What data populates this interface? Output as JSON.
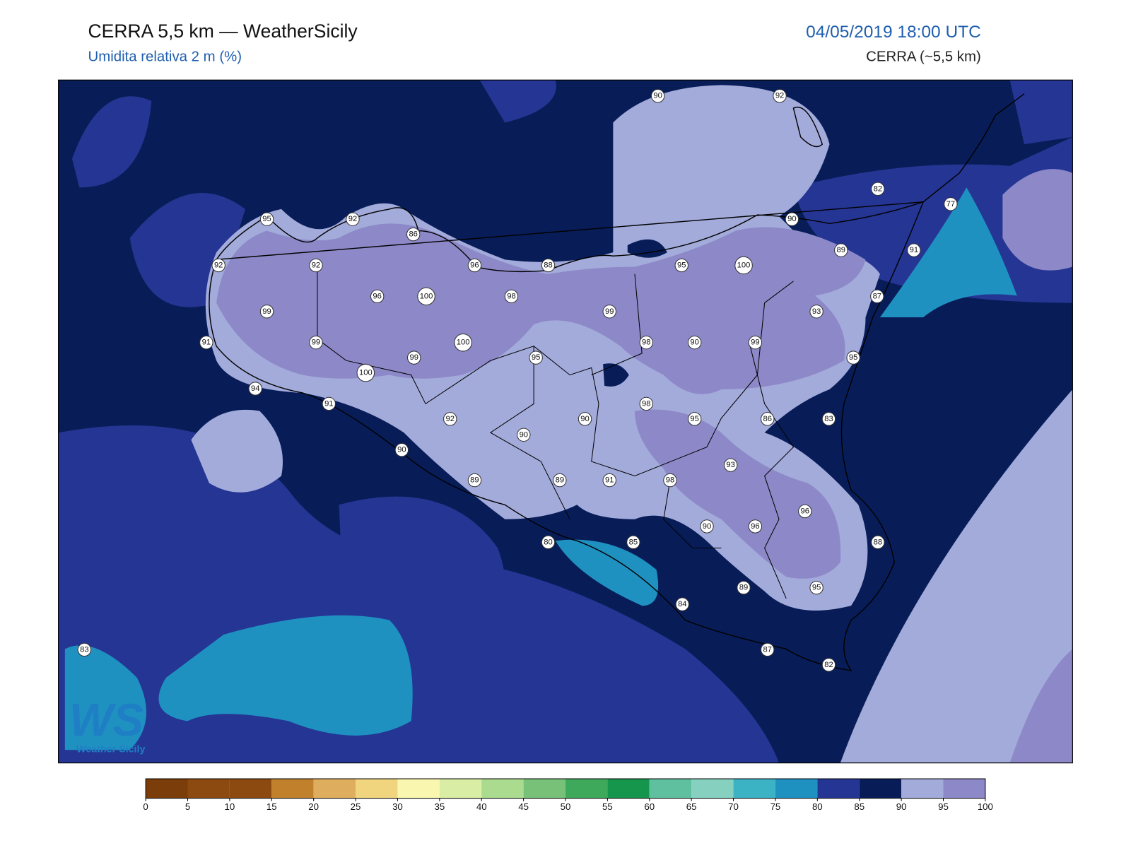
{
  "header": {
    "title": "CERRA 5,5 km — WeatherSicily",
    "subtitle": "Umidita relativa 2 m (%)",
    "datetime": "04/05/2019 18:00 UTC",
    "model": "CERRA (~5,5 km)"
  },
  "logo": {
    "mark": "WS",
    "text": "Weather Sicily"
  },
  "stations": [
    95,
    92,
    86,
    92,
    92,
    96,
    88,
    96,
    100,
    98,
    99,
    91,
    99,
    100,
    99,
    100,
    94,
    91,
    90,
    92,
    82,
    77,
    90,
    89,
    91,
    95,
    100,
    87,
    99,
    93,
    98,
    90,
    99,
    95,
    95,
    92,
    98,
    90,
    95,
    86,
    83,
    90,
    90,
    93,
    89,
    89,
    91,
    98,
    90,
    96,
    96,
    80,
    85,
    88,
    89,
    95,
    84,
    83,
    87,
    82
  ],
  "colorbar": {
    "ticks": [
      0,
      5,
      10,
      15,
      20,
      25,
      30,
      35,
      40,
      45,
      50,
      55,
      60,
      65,
      70,
      75,
      80,
      85,
      90,
      95,
      100
    ],
    "colors": [
      "#7b3d09",
      "#8c4a10",
      "#8c4a10",
      "#c0802c",
      "#dfad5e",
      "#f1d47e",
      "#f9f6b0",
      "#d9eda5",
      "#aadb8f",
      "#77c278",
      "#3ea95b",
      "#16964c",
      "#5fc0a0",
      "#86d0c0",
      "#3cb3c4",
      "#1f91c1",
      "#253594",
      "#081d58",
      "#a3abdb",
      "#8d89c8"
    ]
  }
}
